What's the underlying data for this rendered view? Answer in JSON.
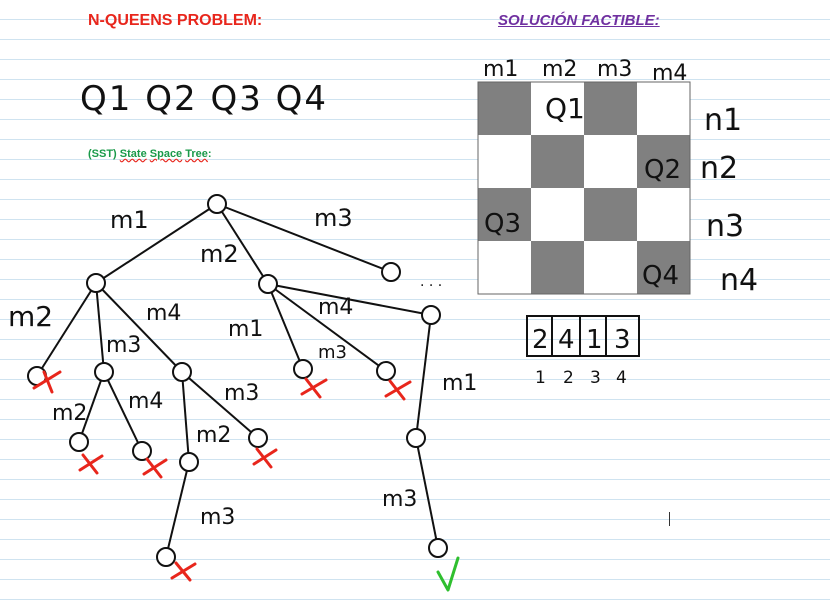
{
  "header": {
    "title": "N-QUEENS PROBLEM:",
    "subtitle": "SOLUCIÓN FACTIBLE:"
  },
  "queens": [
    "Q1",
    "Q2",
    "Q3",
    "Q4"
  ],
  "sst": {
    "prefix": "(SST)",
    "w1": "State",
    "w2": "Space",
    "w3": "Tree",
    "suffix": ":"
  },
  "board": {
    "columns": [
      "m1",
      "m2",
      "m3",
      "m4"
    ],
    "rows": [
      "n1",
      "n2",
      "n3",
      "n4"
    ],
    "queen_labels": [
      "Q1",
      "Q2",
      "Q3",
      "Q4"
    ],
    "dark_color": "#808080",
    "light_color": "#ffffff"
  },
  "solution": {
    "values": [
      "2",
      "4",
      "1",
      "3"
    ],
    "indices": [
      "1",
      "2",
      "3",
      "4"
    ]
  },
  "tree": {
    "edge_labels": [
      "m1",
      "m2",
      "m3",
      "m2",
      "m3",
      "m4",
      "m1",
      "m4",
      "m3",
      "m2",
      "m4",
      "m3",
      "m2",
      "m3",
      "m1",
      "m3"
    ],
    "ellipsis": ". . .",
    "dead_mark_color": "#e8261c",
    "goal_mark_color": "#2fbf2f"
  }
}
